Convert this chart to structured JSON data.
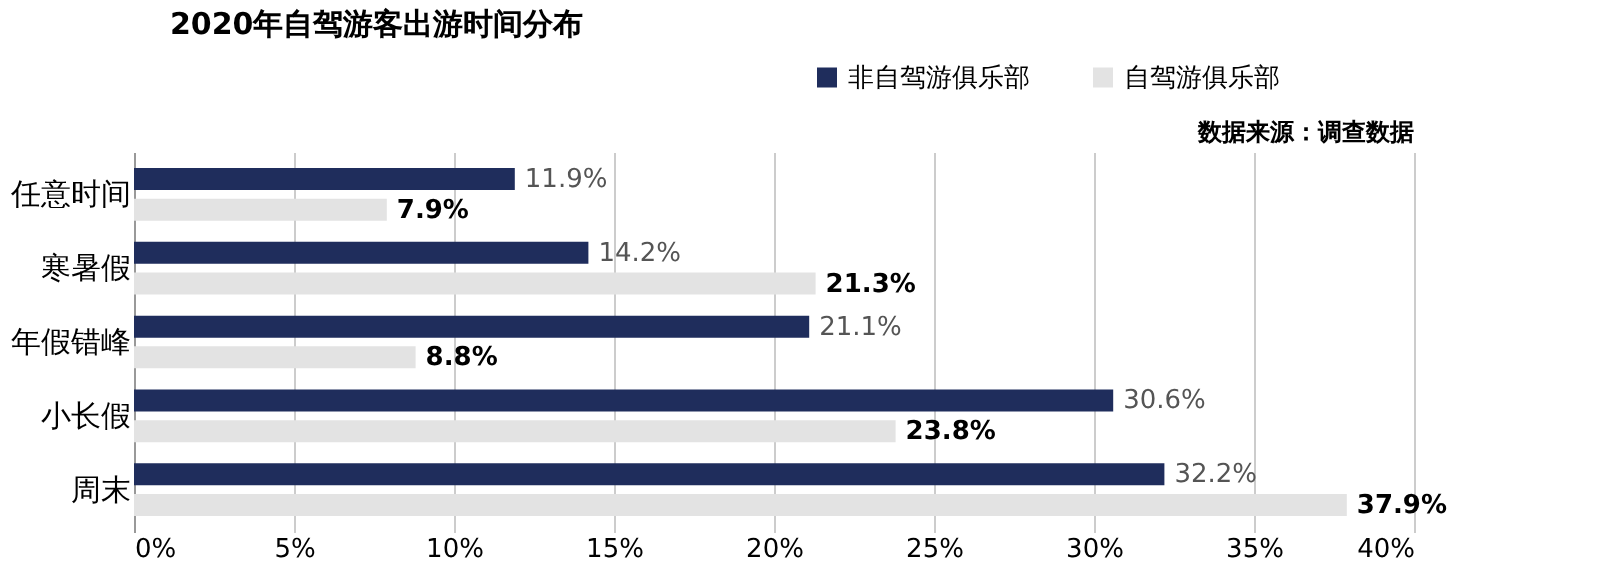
{
  "chart_data": {
    "type": "bar",
    "orientation": "horizontal",
    "title": "2020年自驾游客出游时间分布",
    "categories": [
      "任意时间",
      "寒暑假",
      "年假错峰",
      "小长假",
      "周末"
    ],
    "series": [
      {
        "name": "非自驾游俱乐部",
        "color": "#1f2d5c",
        "values": [
          11.9,
          14.2,
          21.1,
          30.6,
          32.2
        ],
        "value_labels": [
          "11.9%",
          "14.2%",
          "21.1%",
          "30.6%",
          "32.2%"
        ]
      },
      {
        "name": "自驾游俱乐部",
        "color": "#e3e3e3",
        "values": [
          7.9,
          21.3,
          8.8,
          23.8,
          37.9
        ],
        "value_labels": [
          "7.9%",
          "21.3%",
          "8.8%",
          "23.8%",
          "37.9%"
        ]
      }
    ],
    "xlim": [
      0,
      40
    ],
    "xticks": [
      {
        "value": 0,
        "label": "0%"
      },
      {
        "value": 5,
        "label": "5%"
      },
      {
        "value": 10,
        "label": "10%"
      },
      {
        "value": 15,
        "label": "15%"
      },
      {
        "value": 20,
        "label": "20%"
      },
      {
        "value": 25,
        "label": "25%"
      },
      {
        "value": 30,
        "label": "30%"
      },
      {
        "value": 35,
        "label": "35%"
      },
      {
        "value": 40,
        "label": "40%"
      }
    ],
    "grid": "x",
    "legend": "top right",
    "annotations": [
      "数据来源：调查数据"
    ]
  }
}
